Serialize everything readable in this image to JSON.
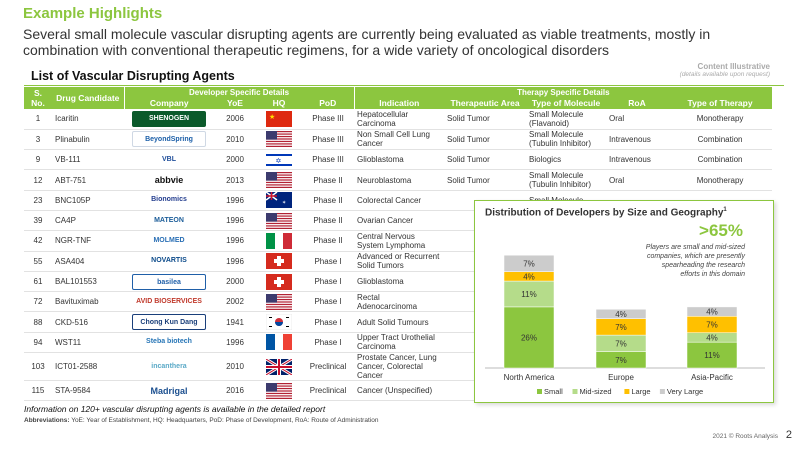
{
  "header": {
    "title": "Example Highlights",
    "subtitle": "Several small molecule vascular disrupting agents are currently being evaluated as viable treatments, mostly in combination with conventional therapeutic regimens, for a wide variety of oncological disorders",
    "illustrative": "Content Illustrative",
    "illustrative_note": "(details available upon request)",
    "list_title": "List of Vascular Disrupting Agents"
  },
  "table": {
    "group_dev": "Developer Specific Details",
    "group_ther": "Therapy Specific Details",
    "col_sno": "S. No.",
    "col_drug": "Drug Candidate",
    "col_company": "Company",
    "col_yoe": "YoE",
    "col_hq": "HQ",
    "col_pod": "PoD",
    "col_indication": "Indication",
    "col_area": "Therapeutic Area",
    "col_type": "Type of Molecule",
    "col_roa": "RoA",
    "col_therapy": "Type of Therapy",
    "rows": [
      {
        "sno": "1",
        "drug": "Icaritin",
        "company": "SHENOGEN",
        "yoe": "2006",
        "hq": "cn",
        "pod": "Phase III",
        "indication": "Hepatocellular Carcinoma",
        "area": "Solid Tumor",
        "type": "Small Molecule (Flavanoid)",
        "roa": "Oral",
        "therapy": "Monotherapy"
      },
      {
        "sno": "3",
        "drug": "Plinabulin",
        "company": "BeyondSpring",
        "yoe": "2010",
        "hq": "us",
        "pod": "Phase III",
        "indication": "Non Small Cell Lung Cancer",
        "area": "Solid Tumor",
        "type": "Small Molecule (Tubulin Inhibitor)",
        "roa": "Intravenous",
        "therapy": "Combination"
      },
      {
        "sno": "9",
        "drug": "VB-111",
        "company": "VBL",
        "yoe": "2000",
        "hq": "il",
        "pod": "Phase III",
        "indication": "Glioblastoma",
        "area": "Solid Tumor",
        "type": "Biologics",
        "roa": "Intravenous",
        "therapy": "Combination"
      },
      {
        "sno": "12",
        "drug": "ABT-751",
        "company": "abbvie",
        "yoe": "2013",
        "hq": "us",
        "pod": "Phase II",
        "indication": "Neuroblastoma",
        "area": "Solid Tumor",
        "type": "Small Molecule (Tubulin Inhibitor)",
        "roa": "Oral",
        "therapy": "Monotherapy"
      },
      {
        "sno": "23",
        "drug": "BNC105P",
        "company": "Bionomics",
        "yoe": "1996",
        "hq": "au",
        "pod": "Phase II",
        "indication": "Colorectal Cancer",
        "area": "",
        "type": "Small Molecule",
        "roa": "",
        "therapy": ""
      },
      {
        "sno": "39",
        "drug": "CA4P",
        "company": "MATEON",
        "yoe": "1996",
        "hq": "us",
        "pod": "Phase II",
        "indication": "Ovarian Cancer",
        "area": "",
        "type": "",
        "roa": "",
        "therapy": ""
      },
      {
        "sno": "42",
        "drug": "NGR-TNF",
        "company": "MOLMED",
        "yoe": "1996",
        "hq": "it",
        "pod": "Phase II",
        "indication": "Central Nervous System Lymphoma",
        "area": "",
        "type": "",
        "roa": "",
        "therapy": ""
      },
      {
        "sno": "55",
        "drug": "ASA404",
        "company": "NOVARTIS",
        "yoe": "1996",
        "hq": "ch",
        "pod": "Phase I",
        "indication": "Advanced or Recurrent Solid Tumors",
        "area": "",
        "type": "",
        "roa": "",
        "therapy": ""
      },
      {
        "sno": "61",
        "drug": "BAL101553",
        "company": "basilea",
        "yoe": "2000",
        "hq": "ch",
        "pod": "Phase I",
        "indication": "Glioblastoma",
        "area": "",
        "type": "",
        "roa": "",
        "therapy": ""
      },
      {
        "sno": "72",
        "drug": "Bavituximab",
        "company": "AVID BIOSERVICES",
        "yoe": "2002",
        "hq": "us",
        "pod": "Phase I",
        "indication": "Rectal Adenocarcinoma",
        "area": "",
        "type": "",
        "roa": "",
        "therapy": ""
      },
      {
        "sno": "88",
        "drug": "CKD-516",
        "company": "Chong Kun Dang",
        "yoe": "1941",
        "hq": "kr",
        "pod": "Phase I",
        "indication": "Adult Solid Tumours",
        "area": "",
        "type": "",
        "roa": "",
        "therapy": ""
      },
      {
        "sno": "94",
        "drug": "WST11",
        "company": "Steba biotech",
        "yoe": "1996",
        "hq": "fr",
        "pod": "Phase I",
        "indication": "Upper Tract Urothelial Carcinoma",
        "area": "",
        "type": "",
        "roa": "",
        "therapy": ""
      },
      {
        "sno": "103",
        "drug": "ICT01-2588",
        "company": "incanthera",
        "yoe": "2010",
        "hq": "gb",
        "pod": "Preclinical",
        "indication": "Prostate Cancer, Lung Cancer, Colorectal Cancer",
        "area": "",
        "type": "",
        "roa": "",
        "therapy": ""
      },
      {
        "sno": "115",
        "drug": "STA-9584",
        "company": "Madrigal",
        "yoe": "2016",
        "hq": "us",
        "pod": "Preclinical",
        "indication": "Cancer (Unspecified)",
        "area": "",
        "type": "",
        "roa": "",
        "therapy": ""
      }
    ]
  },
  "chart_data": {
    "type": "bar",
    "stacked": true,
    "title": "Distribution of Developers by Size and Geography",
    "title_sup": "1",
    "categories": [
      "North America",
      "Europe",
      "Asia-Pacific"
    ],
    "series": [
      {
        "name": "Small",
        "color": "#8cc63f",
        "values": [
          26,
          7,
          11
        ]
      },
      {
        "name": "Mid-sized",
        "color": "#b5dc8a",
        "values": [
          11,
          7,
          4
        ]
      },
      {
        "name": "Large",
        "color": "#ffc000",
        "values": [
          4,
          7,
          7
        ]
      },
      {
        "name": "Very Large",
        "color": "#cccccc",
        "values": [
          7,
          4,
          4
        ]
      }
    ],
    "value_suffix": "%",
    "big_stat": ">65%",
    "stat_note": "Players are small and mid-sized companies, which are presently spearheading the research efforts in this domain"
  },
  "footer": {
    "footnote": "Information on 120+ vascular disrupting agents is available in the detailed report",
    "abbrev_label": "Abbreviations:",
    "abbrev_text": " YoE: Year of Establishment,  HQ: Headquarters, PoD:  Phase of Development,   RoA: Route of Administration",
    "copyright": "2021 © Roots Analysis",
    "page": "2"
  }
}
